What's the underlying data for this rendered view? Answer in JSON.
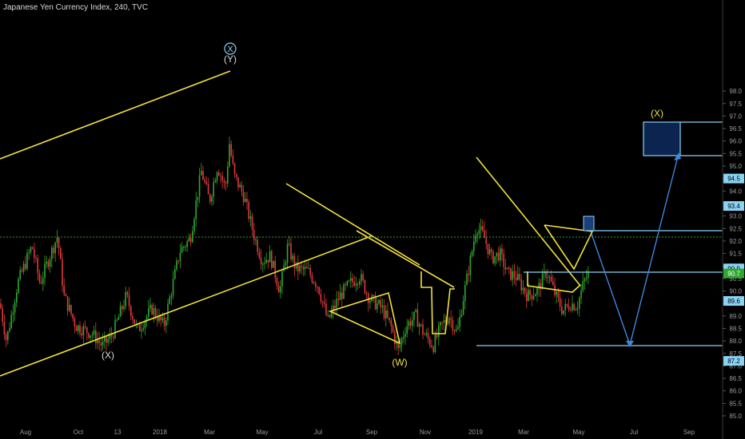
{
  "header": {
    "title": "Japanese Yen Currency Index, 240, TVC"
  },
  "chart_data": {
    "type": "candlestick",
    "ylim": [
      84.5,
      98.4
    ],
    "y_ticks": [
      "85.0",
      "85.5",
      "86.0",
      "86.5",
      "87.0",
      "87.5",
      "88.0",
      "88.5",
      "89.0",
      "89.5",
      "90.0",
      "90.5",
      "91.0",
      "91.5",
      "92.0",
      "92.5",
      "93.0",
      "93.5",
      "94.0",
      "94.5",
      "95.0",
      "95.5",
      "96.0",
      "96.5",
      "97.0",
      "97.5",
      "98.0"
    ],
    "x_labels": [
      "Aug",
      "Oct",
      "13",
      "2018",
      "Mar",
      "May",
      "Jul",
      "Sep",
      "Nov",
      "2019",
      "Mar",
      "May",
      "Jul",
      "Sep"
    ],
    "price_labels": [
      {
        "value": 94.5,
        "text": "94.5",
        "color": "#89d3f5"
      },
      {
        "value": 93.4,
        "text": "93.4",
        "color": "#89d3f5"
      },
      {
        "value": 90.9,
        "text": "90.9",
        "color": "#89d3f5"
      },
      {
        "value": 90.7,
        "text": "90.7",
        "color": "#2ea82e"
      },
      {
        "value": 89.6,
        "text": "89.6",
        "color": "#89d3f5"
      },
      {
        "value": 87.2,
        "text": "87.2",
        "color": "#89d3f5"
      }
    ],
    "current_price": 90.7,
    "annotations": [
      {
        "text": "X",
        "circled": true,
        "color": "#89d3f5"
      },
      {
        "text": "(Y)",
        "color": "#d8d8d8"
      },
      {
        "text": "(X)",
        "color": "#d8d8d8"
      },
      {
        "text": "(W)",
        "color": "#f2e13b"
      },
      {
        "text": "(X)",
        "color": "#f2e13b"
      }
    ],
    "colors": {
      "background": "#000000",
      "up_candle": "#2ea82e",
      "down_candle": "#e03a3a",
      "trendline": "#f2e13b",
      "level": "#89d3f5",
      "projection": "#3f86d9",
      "current_price_line": "#2ea82e"
    }
  }
}
